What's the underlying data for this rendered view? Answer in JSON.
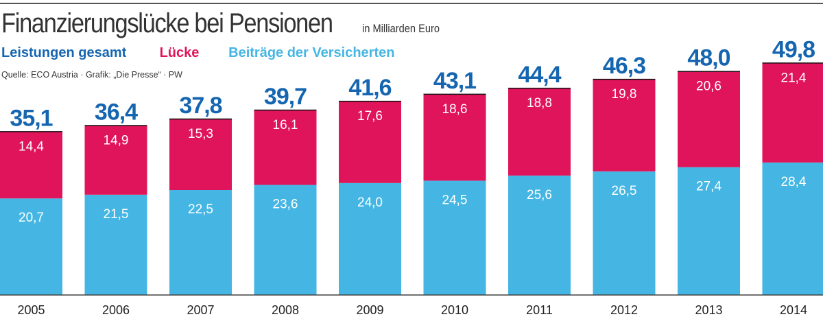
{
  "header": {
    "title": "Finanzierungslücke bei Pensionen",
    "unit": "in Milliarden Euro",
    "source": "Quelle: ECO Austria · Grafik: „Die Presse“ · PW"
  },
  "legend": {
    "total_label": "Leistungen gesamt",
    "gap_label": "Lücke",
    "contributions_label": "Beiträge der Versicherten"
  },
  "colors": {
    "total": "#1565b0",
    "gap": "#e0145a",
    "contributions": "#45b6e3",
    "text_dark": "#222222"
  },
  "chart_data": {
    "type": "bar",
    "stacked": true,
    "categories": [
      "2005",
      "2006",
      "2007",
      "2008",
      "2009",
      "2010",
      "2011",
      "2012",
      "2013",
      "2014"
    ],
    "series": [
      {
        "name": "Beiträge der Versicherten",
        "values": [
          20.7,
          21.5,
          22.5,
          23.6,
          24.0,
          24.5,
          25.6,
          26.5,
          27.4,
          28.4
        ]
      },
      {
        "name": "Lücke",
        "values": [
          14.4,
          14.9,
          15.3,
          16.1,
          17.6,
          18.6,
          18.8,
          19.8,
          20.6,
          21.4
        ]
      }
    ],
    "totals": [
      35.1,
      36.4,
      37.8,
      39.7,
      41.6,
      43.1,
      44.4,
      46.3,
      48.0,
      49.8
    ],
    "total_labels": [
      "35,1",
      "36,4",
      "37,8",
      "39,7",
      "41,6",
      "43,1",
      "44,4",
      "46,3",
      "48,0",
      "49,8"
    ],
    "contribution_labels": [
      "20,7",
      "21,5",
      "22,5",
      "23,6",
      "24,0",
      "24,5",
      "25,6",
      "26,5",
      "27,4",
      "28,4"
    ],
    "gap_labels": [
      "14,4",
      "14,9",
      "15,3",
      "16,1",
      "17,6",
      "18,6",
      "18,8",
      "19,8",
      "20,6",
      "21,4"
    ],
    "ylim": [
      0,
      50
    ],
    "grid": false,
    "legend_position": "top-left"
  }
}
